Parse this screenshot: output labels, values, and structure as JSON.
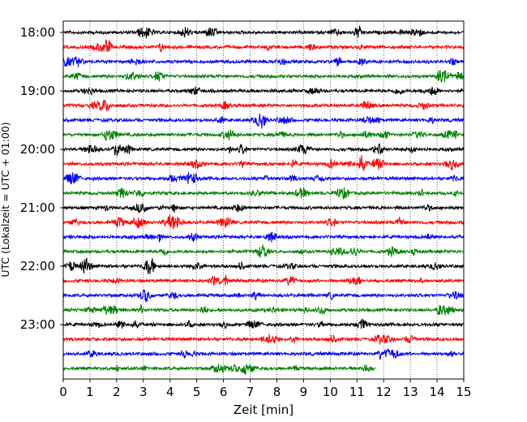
{
  "chart_data": {
    "type": "line",
    "subtype": "helicorder-seismogram",
    "xlabel": "Zeit  [min]",
    "ylabel": "UTC (Lokalzeit = UTC + 01:00)",
    "xlim": [
      0,
      15
    ],
    "x_ticks": [
      0,
      1,
      2,
      3,
      4,
      5,
      6,
      7,
      8,
      9,
      10,
      11,
      12,
      13,
      14,
      15
    ],
    "y_tick_labels": [
      "18:00",
      "19:00",
      "20:00",
      "21:00",
      "22:00",
      "23:00"
    ],
    "trace_interval_minutes": 15,
    "trace_start_times": [
      "18:00",
      "18:15",
      "18:30",
      "18:45",
      "19:00",
      "19:15",
      "19:30",
      "19:45",
      "20:00",
      "20:15",
      "20:30",
      "20:45",
      "21:00",
      "21:15",
      "21:30",
      "21:45",
      "22:00",
      "22:15",
      "22:30",
      "22:45",
      "23:00",
      "23:15",
      "23:30",
      "23:45"
    ],
    "trace_colors": [
      "#000000",
      "#ff0000",
      "#0000ff",
      "#008000"
    ],
    "last_trace_end_minute": 11.7,
    "grid": "vertical dotted lines at each minute"
  }
}
